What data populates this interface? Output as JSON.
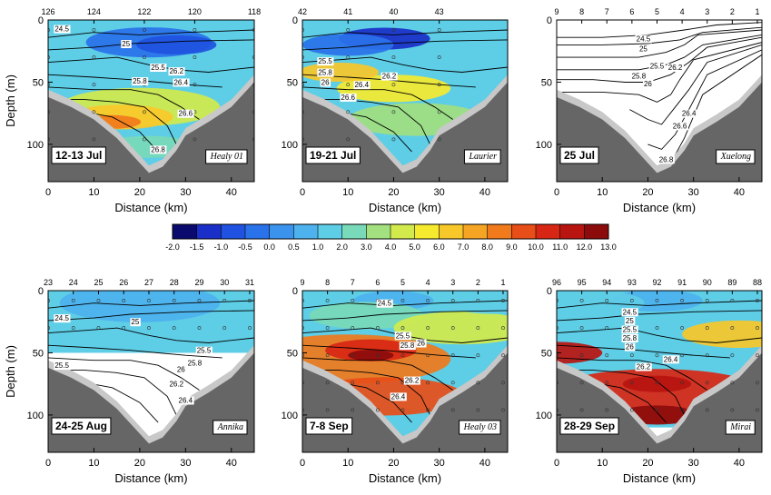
{
  "chart_data": {
    "type": "contour-section",
    "ylabel": "Depth (m)",
    "xlabel": "Distance (km)",
    "xlim": [
      0,
      45
    ],
    "ylim": [
      130,
      0
    ],
    "x_ticks": [
      0,
      10,
      20,
      30,
      40
    ],
    "y_ticks": [
      0,
      50,
      100
    ],
    "colorbar": {
      "levels": [
        "-2.0",
        "-1.5",
        "-1.0",
        "-0.5",
        "0.0",
        "0.5",
        "1.0",
        "2.0",
        "3.0",
        "4.0",
        "5.0",
        "6.0",
        "7.0",
        "8.0",
        "9.0",
        "10.0",
        "11.0",
        "12.0",
        "13.0"
      ],
      "colors": [
        "#0a0a6e",
        "#1a2fc8",
        "#1f52e0",
        "#2a72ea",
        "#3c93ee",
        "#4db2ee",
        "#5ecde6",
        "#78dab8",
        "#a2e080",
        "#d2ea4c",
        "#f6ea2e",
        "#f8c82a",
        "#f5a424",
        "#f07a1c",
        "#e84e18",
        "#d82614",
        "#b81410",
        "#8c0c0c",
        "#5a0606"
      ]
    },
    "bathymetry": [
      [
        0,
        62
      ],
      [
        5,
        70
      ],
      [
        10,
        80
      ],
      [
        15,
        95
      ],
      [
        20,
        115
      ],
      [
        22,
        123
      ],
      [
        25,
        118
      ],
      [
        28,
        105
      ],
      [
        30,
        93
      ],
      [
        35,
        82
      ],
      [
        40,
        70
      ],
      [
        45,
        50
      ]
    ],
    "sections": [
      {
        "date": "12-13 Jul",
        "ship": "Healy 01",
        "stations": [
          "126",
          "124",
          "122",
          "120",
          "118"
        ],
        "station_km": [
          0,
          10,
          21,
          32,
          45
        ],
        "data_max_depth": 125,
        "isopycnal_labels": [
          {
            "label": "24.5",
            "x": 3,
            "y": 7
          },
          {
            "label": "25",
            "x": 17,
            "y": 19
          },
          {
            "label": "25.5",
            "x": 24,
            "y": 38
          },
          {
            "label": "25.8",
            "x": 20,
            "y": 49
          },
          {
            "label": "26.2",
            "x": 28,
            "y": 41
          },
          {
            "label": "26.4",
            "x": 29,
            "y": 50
          },
          {
            "label": "26.6",
            "x": 30,
            "y": 75
          },
          {
            "label": "26.8",
            "x": 24,
            "y": 104
          }
        ],
        "temperature_field": [
          {
            "x": 22,
            "y": 18,
            "r": 11,
            "level": "-0.5"
          },
          {
            "x": 28,
            "y": 20,
            "r": 7,
            "level": "-1.0"
          },
          {
            "x": 12,
            "y": 45,
            "r": 10,
            "level": "1.0"
          },
          {
            "x": 33,
            "y": 50,
            "r": 9,
            "level": "1.0"
          },
          {
            "x": 20,
            "y": 70,
            "r": 14,
            "level": "4.0"
          },
          {
            "x": 16,
            "y": 78,
            "r": 9,
            "level": "6.0"
          },
          {
            "x": 14,
            "y": 82,
            "r": 5,
            "level": "8.0"
          },
          {
            "x": 22,
            "y": 102,
            "r": 8,
            "level": "2.0"
          }
        ]
      },
      {
        "date": "19-21 Jul",
        "ship": "Laurier",
        "stations": [
          "42",
          "41",
          "40",
          "43"
        ],
        "station_km": [
          0,
          10,
          20,
          30
        ],
        "data_max_depth": 122,
        "isopycnal_labels": [
          {
            "label": "25.5",
            "x": 5,
            "y": 33
          },
          {
            "label": "25.8",
            "x": 5,
            "y": 42
          },
          {
            "label": "26",
            "x": 5,
            "y": 50
          },
          {
            "label": "26.2",
            "x": 19,
            "y": 45
          },
          {
            "label": "26.4",
            "x": 13,
            "y": 52
          },
          {
            "label": "26.6",
            "x": 10,
            "y": 62
          }
        ],
        "temperature_field": [
          {
            "x": 18,
            "y": 15,
            "r": 8,
            "level": "-1.5"
          },
          {
            "x": 10,
            "y": 20,
            "r": 8,
            "level": "-0.5"
          },
          {
            "x": 20,
            "y": 55,
            "r": 10,
            "level": "5.0"
          },
          {
            "x": 25,
            "y": 80,
            "r": 12,
            "level": "3.0"
          },
          {
            "x": 8,
            "y": 42,
            "r": 7,
            "level": "6.0"
          }
        ]
      },
      {
        "date": "25 Jul",
        "ship": "Xuelong",
        "stations": [
          "9",
          "8",
          "7",
          "6",
          "5",
          "4",
          "3",
          "2",
          "1"
        ],
        "station_km": [
          0,
          5.5,
          11,
          16.5,
          22,
          27.5,
          33,
          38.5,
          44
        ],
        "data_max_depth": 0,
        "isopycnal_labels": [
          {
            "label": "24.5",
            "x": 19,
            "y": 15
          },
          {
            "label": "25",
            "x": 19,
            "y": 23
          },
          {
            "label": "25.5",
            "x": 22,
            "y": 37
          },
          {
            "label": "25.8",
            "x": 18,
            "y": 45
          },
          {
            "label": "26",
            "x": 20,
            "y": 51
          },
          {
            "label": "26.2",
            "x": 26,
            "y": 38
          },
          {
            "label": "26.4",
            "x": 29,
            "y": 75
          },
          {
            "label": "26.6",
            "x": 27,
            "y": 85
          },
          {
            "label": "26.8",
            "x": 24,
            "y": 112
          }
        ],
        "temperature_field": []
      },
      {
        "date": "24-25 Aug",
        "ship": "Annika",
        "stations": [
          "23",
          "24",
          "25",
          "26",
          "27",
          "28",
          "29",
          "30",
          "31"
        ],
        "station_km": [
          0,
          5.5,
          11,
          16.5,
          22,
          27.5,
          33,
          38.5,
          44
        ],
        "data_max_depth": 50,
        "isopycnal_labels": [
          {
            "label": "24.5",
            "x": 3,
            "y": 22
          },
          {
            "label": "25",
            "x": 19,
            "y": 25
          },
          {
            "label": "25.5",
            "x": 3,
            "y": 60
          },
          {
            "label": "25.5",
            "x": 34,
            "y": 48
          },
          {
            "label": "25.8",
            "x": 32,
            "y": 58
          },
          {
            "label": "26",
            "x": 29,
            "y": 63
          },
          {
            "label": "26.2",
            "x": 28,
            "y": 75
          },
          {
            "label": "26.4",
            "x": 30,
            "y": 88
          }
        ],
        "temperature_field": [
          {
            "x": 20,
            "y": 10,
            "r": 14,
            "level": "0.5"
          }
        ]
      },
      {
        "date": "7-8 Sep",
        "ship": "Healy 03",
        "stations": [
          "9",
          "8",
          "7",
          "6",
          "5",
          "4",
          "3",
          "2",
          "1"
        ],
        "station_km": [
          0,
          5.5,
          11,
          16.5,
          22,
          27.5,
          33,
          38.5,
          44
        ],
        "data_max_depth": 118,
        "isopycnal_labels": [
          {
            "label": "24.5",
            "x": 18,
            "y": 10
          },
          {
            "label": "25.5",
            "x": 22,
            "y": 36
          },
          {
            "label": "25.8",
            "x": 23,
            "y": 44
          },
          {
            "label": "26",
            "x": 26,
            "y": 42
          },
          {
            "label": "26.2",
            "x": 24,
            "y": 72
          },
          {
            "label": "26.4",
            "x": 21,
            "y": 85
          }
        ],
        "temperature_field": [
          {
            "x": 20,
            "y": 8,
            "r": 7,
            "level": "0.5"
          },
          {
            "x": 14,
            "y": 20,
            "r": 10,
            "level": "2.0"
          },
          {
            "x": 10,
            "y": 55,
            "r": 18,
            "level": "8.0"
          },
          {
            "x": 15,
            "y": 48,
            "r": 8,
            "level": "10.0"
          },
          {
            "x": 15,
            "y": 52,
            "r": 4,
            "level": "12.0"
          },
          {
            "x": 18,
            "y": 85,
            "r": 14,
            "level": "9.0"
          },
          {
            "x": 35,
            "y": 30,
            "r": 12,
            "level": "4.0"
          },
          {
            "x": 42,
            "y": 10,
            "r": 8,
            "level": "1.0"
          }
        ]
      },
      {
        "date": "28-29 Sep",
        "ship": "Mirai",
        "stations": [
          "96",
          "95",
          "94",
          "93",
          "92",
          "91",
          "90",
          "89",
          "88"
        ],
        "station_km": [
          0,
          5.5,
          11,
          16.5,
          22,
          27.5,
          33,
          38.5,
          44
        ],
        "data_max_depth": 110,
        "isopycnal_labels": [
          {
            "label": "24.5",
            "x": 16,
            "y": 17
          },
          {
            "label": "25",
            "x": 16,
            "y": 24
          },
          {
            "label": "25.5",
            "x": 16,
            "y": 31
          },
          {
            "label": "25.8",
            "x": 16,
            "y": 38
          },
          {
            "label": "26",
            "x": 16,
            "y": 45
          },
          {
            "label": "26.2",
            "x": 19,
            "y": 61
          },
          {
            "label": "26.4",
            "x": 25,
            "y": 55
          }
        ],
        "temperature_field": [
          {
            "x": 22,
            "y": 8,
            "r": 8,
            "level": "0.5"
          },
          {
            "x": 8,
            "y": 10,
            "r": 9,
            "level": "1.0"
          },
          {
            "x": 40,
            "y": 35,
            "r": 10,
            "level": "6.0"
          },
          {
            "x": 0,
            "y": 50,
            "r": 8,
            "level": "11.0"
          },
          {
            "x": 22,
            "y": 85,
            "r": 20,
            "level": "10.0"
          },
          {
            "x": 22,
            "y": 75,
            "r": 6,
            "level": "11.0"
          },
          {
            "x": 22,
            "y": 100,
            "r": 7,
            "level": "12.0"
          }
        ]
      }
    ]
  }
}
